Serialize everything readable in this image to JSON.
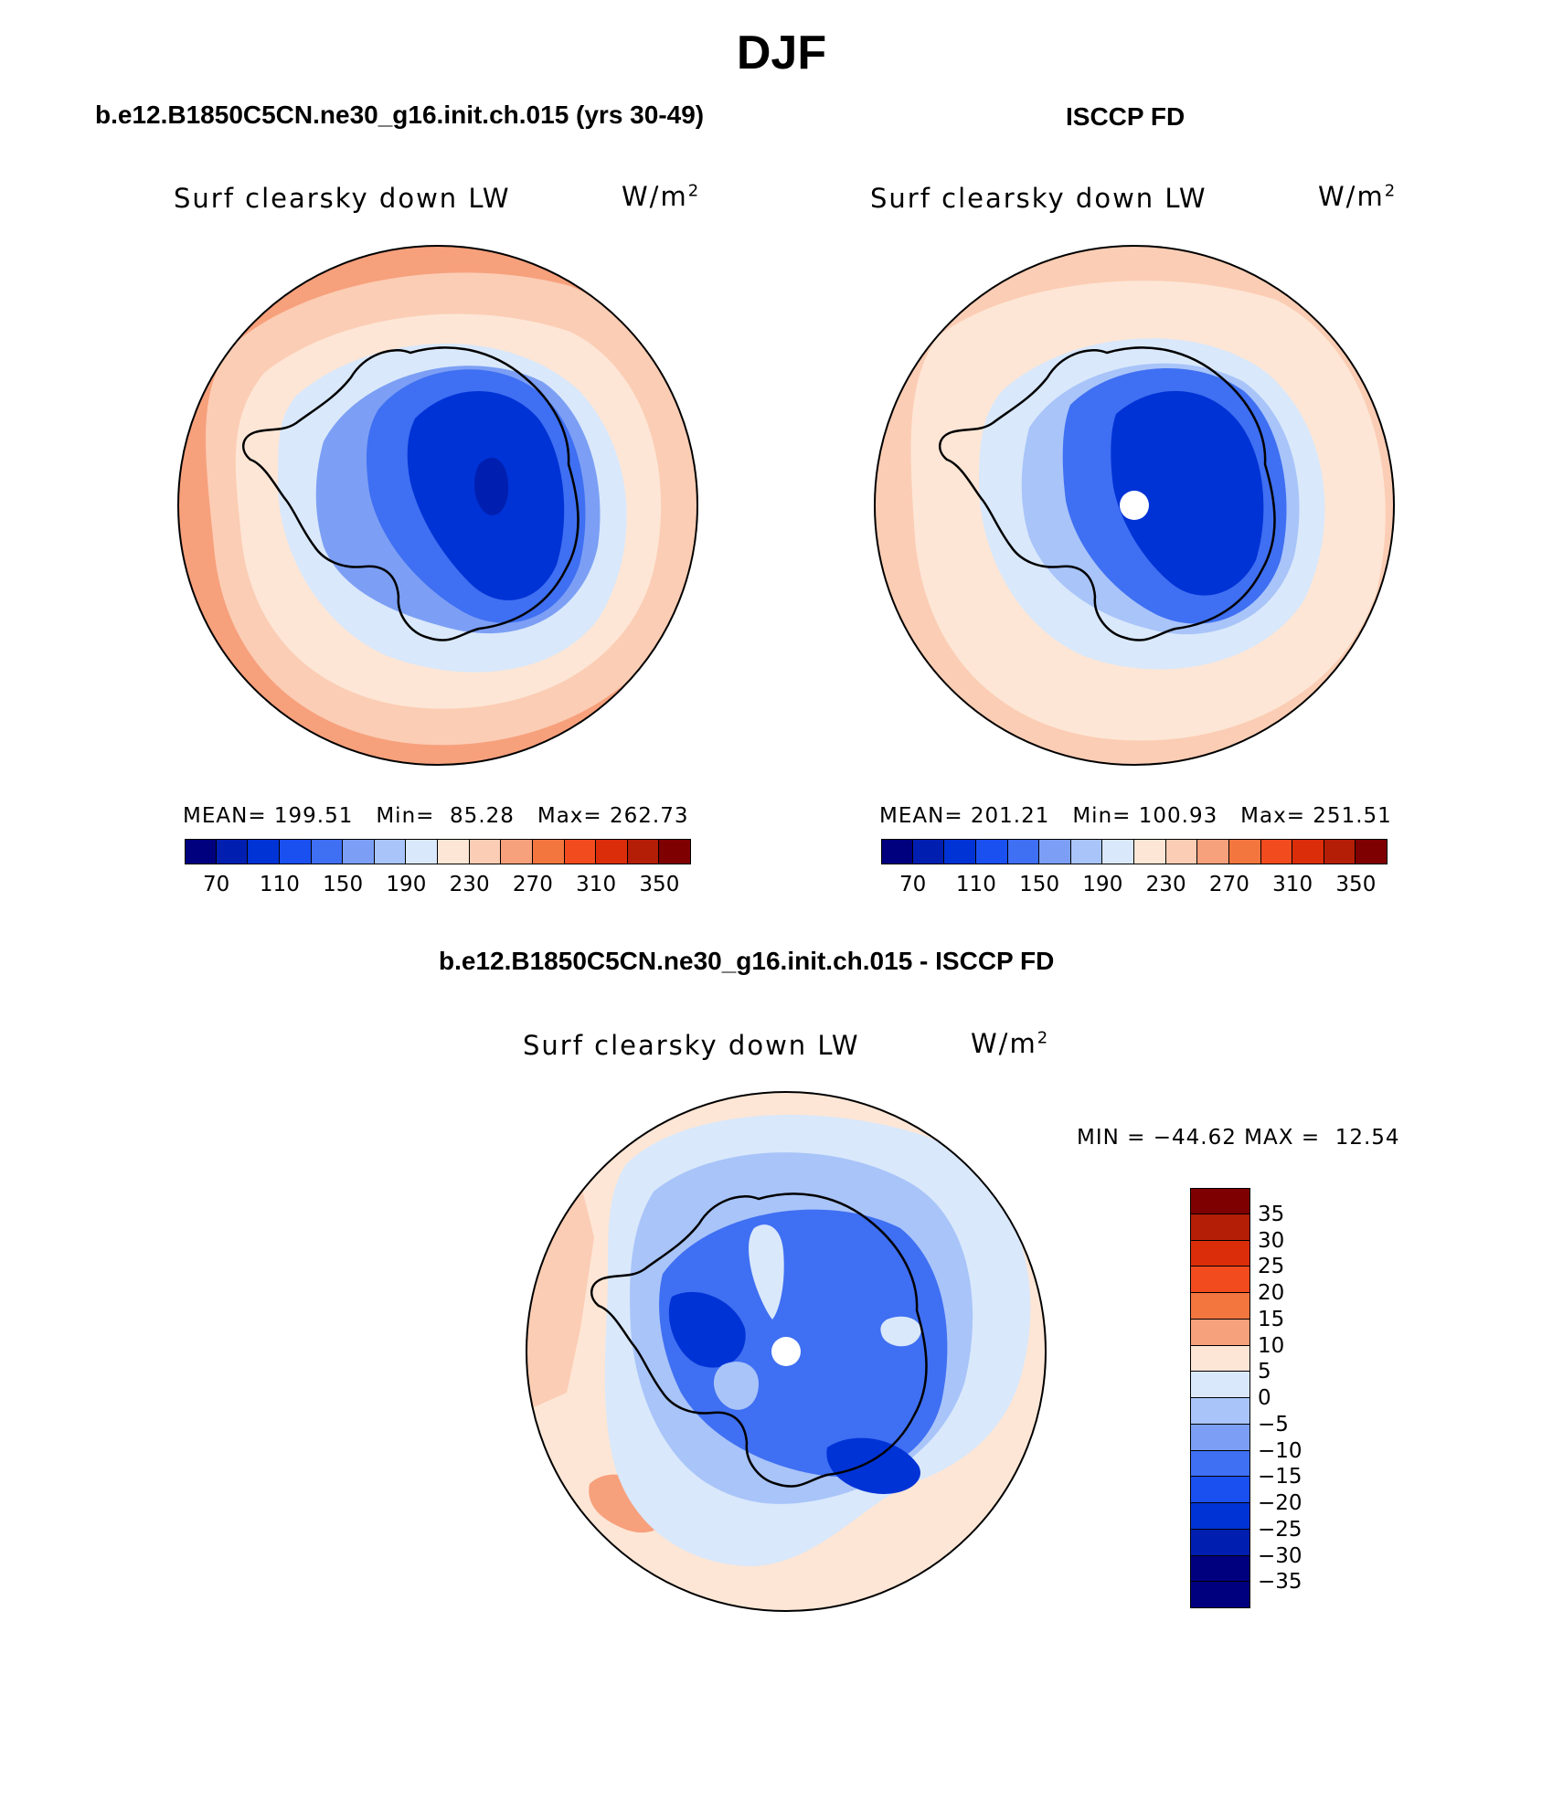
{
  "figure": {
    "title": "DJF"
  },
  "panels": {
    "model": {
      "title": "b.e12.B1850C5CN.ne30_g16.init.ch.015 (yrs 30-49)",
      "variable": "Surf clearsky down LW",
      "units": "W/m",
      "units_sup": "2",
      "mean_label": "MEAN=",
      "mean": "199.51",
      "min_label": "Min=",
      "min": "85.28",
      "max_label": "Max=",
      "max": "262.73"
    },
    "obs": {
      "title": "ISCCP FD",
      "variable": "Surf clearsky down LW",
      "units": "W/m",
      "units_sup": "2",
      "mean_label": "MEAN=",
      "mean": "201.21",
      "min_label": "Min=",
      "min": "100.93",
      "max_label": "Max=",
      "max": "251.51"
    },
    "diff": {
      "title": "b.e12.B1850C5CN.ne30_g16.init.ch.015 - ISCCP FD",
      "variable": "Surf clearsky down LW",
      "units": "W/m",
      "units_sup": "2",
      "min_label": "MIN =",
      "min": "−44.62",
      "max_label": "MAX =",
      "max": "12.54"
    }
  },
  "colorbars": {
    "absolute": {
      "colors": [
        "#00007f",
        "#001fb0",
        "#0033d6",
        "#1a4ff0",
        "#3f6ff2",
        "#7c9ff5",
        "#a8c4f9",
        "#d9e8fb",
        "#fde6d6",
        "#fbcdb4",
        "#f7a07c",
        "#f4763f",
        "#f14b1e",
        "#dc2d0a",
        "#b41d06",
        "#7f0000"
      ],
      "tick_labels": [
        "70",
        "110",
        "150",
        "190",
        "230",
        "270",
        "310",
        "350"
      ]
    },
    "difference": {
      "colors": [
        "#7f0000",
        "#b41d06",
        "#dc2d0a",
        "#f14b1e",
        "#f4763f",
        "#f7a07c",
        "#fde6d6",
        "#d9e8fb",
        "#a8c4f9",
        "#7c9ff5",
        "#3f6ff2",
        "#1a4ff0",
        "#0033d6",
        "#001fb0",
        "#00007f"
      ],
      "tick_labels": [
        "35",
        "30",
        "25",
        "20",
        "15",
        "10",
        "5",
        "0",
        "−5",
        "−10",
        "−15",
        "−20",
        "−25",
        "−30",
        "−35"
      ]
    }
  }
}
